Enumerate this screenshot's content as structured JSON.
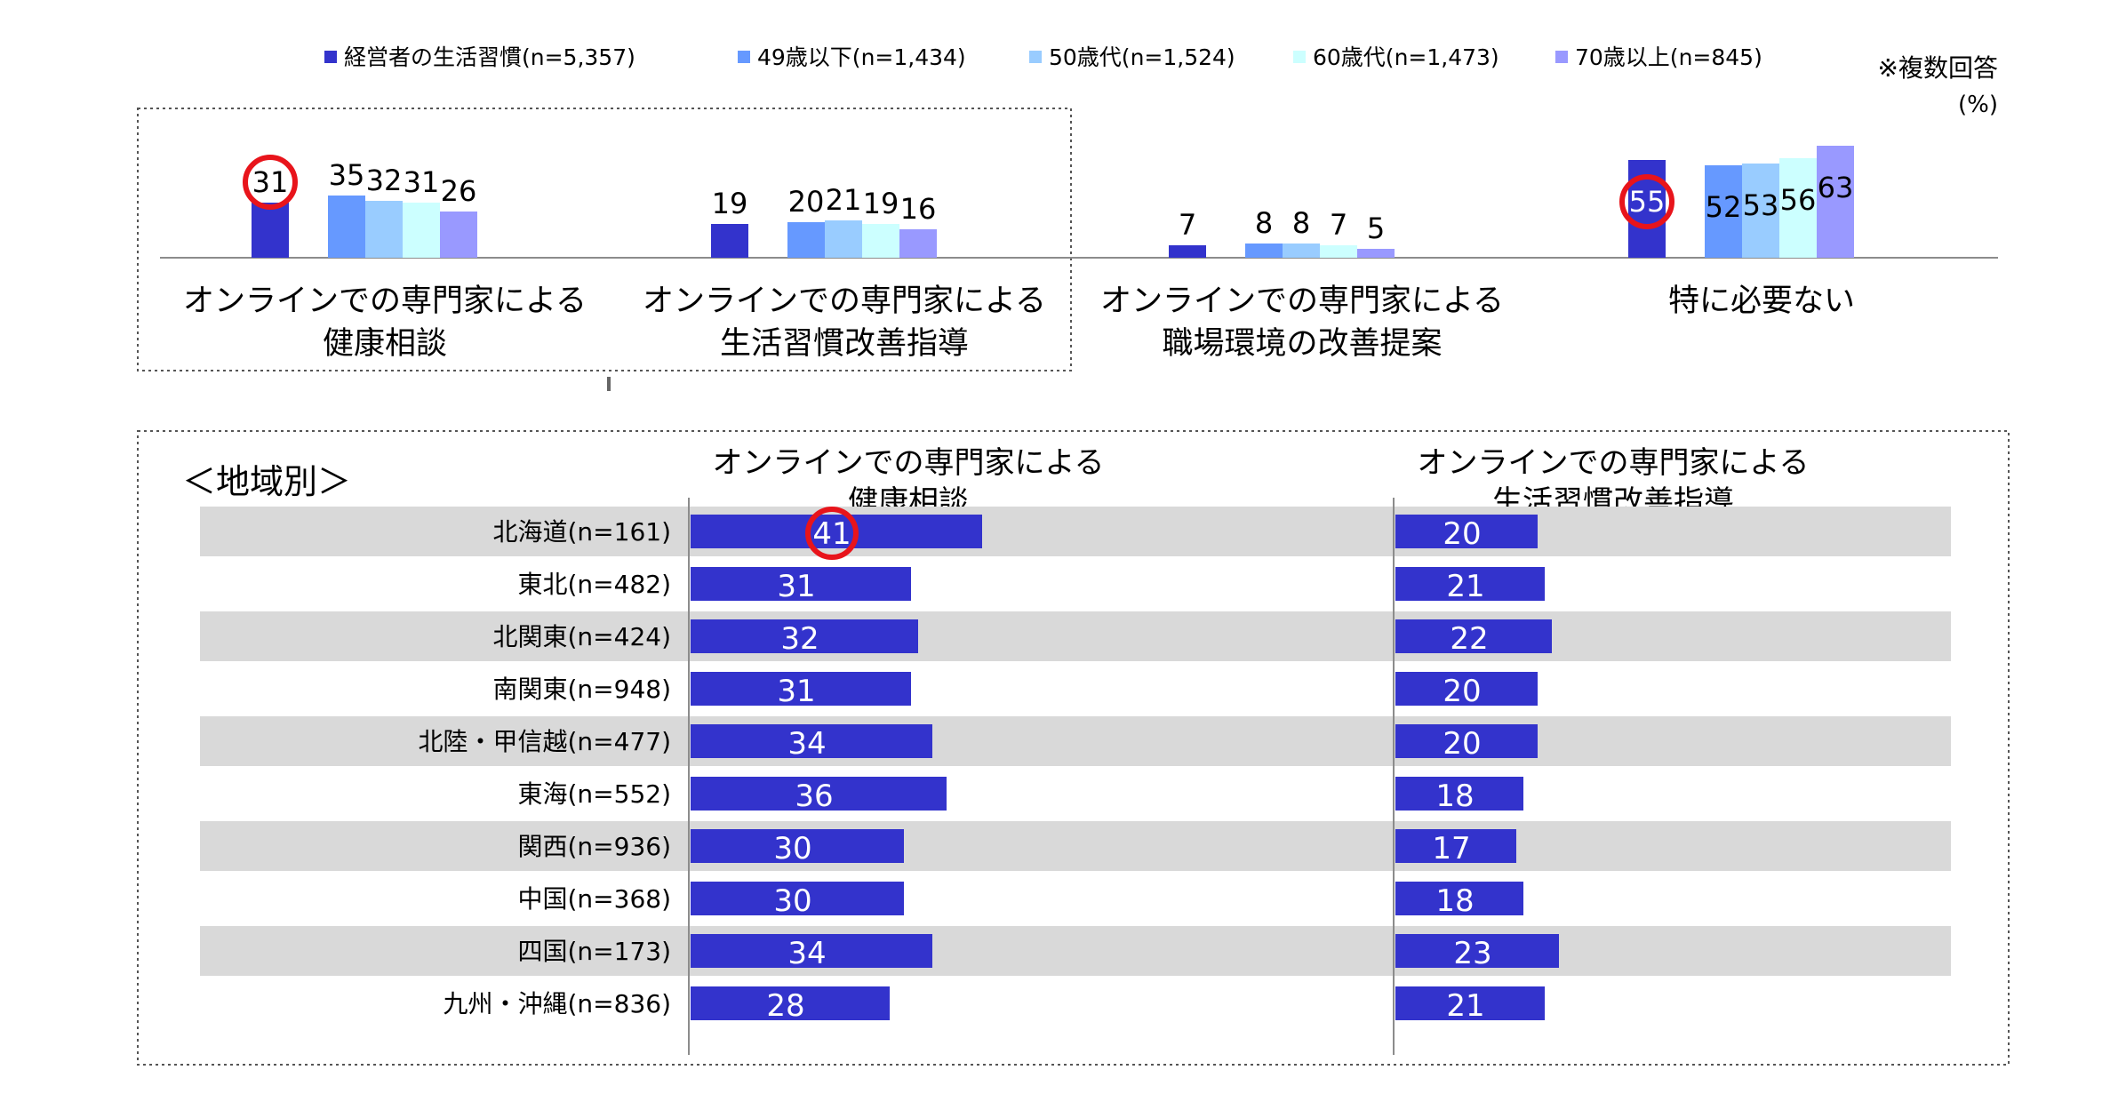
{
  "colors": {
    "series": [
      "#3333CC",
      "#6699FF",
      "#99CCFF",
      "#CCFFFF",
      "#9999FF"
    ],
    "region_bar": "#3333CC",
    "row_band": "#D9D9D9",
    "highlight": "#E8141B"
  },
  "note": "※複数回答",
  "unit": "(%)",
  "chart_data": [
    {
      "type": "bar",
      "categories": [
        [
          "オンラインでの専門家による",
          "健康相談"
        ],
        [
          "オンラインでの専門家による",
          "生活習慣改善指導"
        ],
        [
          "オンラインでの専門家による",
          "職場環境の改善提案"
        ],
        [
          "特に必要ない"
        ]
      ],
      "series": [
        {
          "name": "経営者の生活習慣(n=5,357)",
          "values": [
            31,
            19,
            7,
            55
          ]
        },
        {
          "name": "49歳以下(n=1,434)",
          "values": [
            35,
            20,
            8,
            52
          ]
        },
        {
          "name": "50歳代(n=1,524)",
          "values": [
            32,
            21,
            8,
            53
          ]
        },
        {
          "name": "60歳代(n=1,473)",
          "values": [
            31,
            19,
            7,
            56
          ]
        },
        {
          "name": "70歳以上(n=845)",
          "values": [
            26,
            16,
            5,
            63
          ]
        }
      ],
      "ylim": [
        0,
        68
      ],
      "legend": "top",
      "highlighted": [
        [
          0,
          0
        ],
        [
          3,
          0
        ]
      ]
    },
    {
      "type": "bar",
      "orientation": "horizontal",
      "title": "＜地域別＞",
      "panels": [
        [
          "オンラインでの専門家による",
          "健康相談"
        ],
        [
          "オンラインでの専門家による",
          "生活習慣改善指導"
        ]
      ],
      "categories": [
        "北海道(n=161)",
        "東北(n=482)",
        "北関東(n=424)",
        "南関東(n=948)",
        "北陸・甲信越(n=477)",
        "東海(n=552)",
        "関西(n=936)",
        "中国(n=368)",
        "四国(n=173)",
        "九州・沖縄(n=836)"
      ],
      "series": [
        {
          "values": [
            41,
            31,
            32,
            31,
            34,
            36,
            30,
            30,
            34,
            28
          ]
        },
        {
          "values": [
            20,
            21,
            22,
            20,
            20,
            18,
            17,
            18,
            23,
            21
          ]
        }
      ],
      "highlighted": [
        [
          0,
          0
        ]
      ]
    }
  ]
}
